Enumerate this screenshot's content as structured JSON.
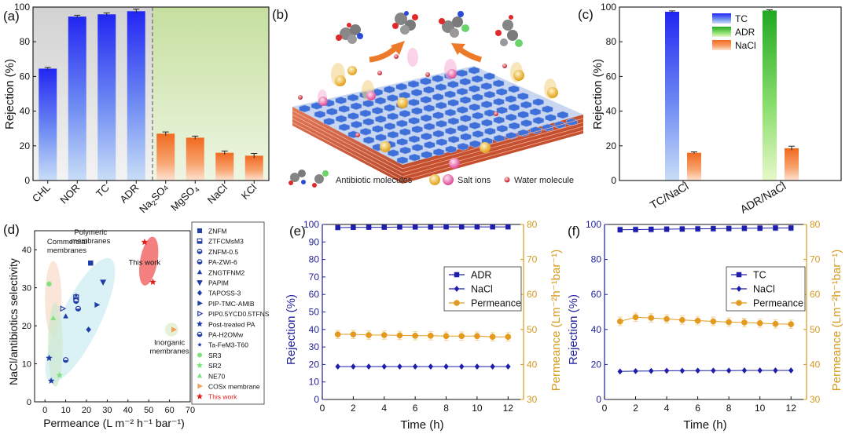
{
  "panels": {
    "a": "(a)",
    "b": "(b)",
    "c": "(c)",
    "d": "(d)",
    "e": "(e)",
    "f": "(f)"
  },
  "schematic": {
    "legend_antibiotic": "Antibiotic molecules",
    "legend_salt": "Salt ions",
    "legend_water": "Water molecule"
  },
  "chart_data": [
    {
      "id": "a",
      "type": "bar",
      "ylabel": "Rejection (%)",
      "ylim": [
        0,
        100
      ],
      "yticks": [
        0,
        20,
        40,
        60,
        80,
        100
      ],
      "categories": [
        "CHL",
        "NOR",
        "TC",
        "ADR",
        "Na2SO4",
        "MgSO4",
        "NaCl",
        "KCl"
      ],
      "category_labels": [
        {
          "main": "CHL",
          "subs": []
        },
        {
          "main": "NOR",
          "subs": []
        },
        {
          "main": "TC",
          "subs": []
        },
        {
          "main": "ADR",
          "subs": []
        },
        {
          "main": "Na",
          "subs": [
            "2",
            "SO",
            "4"
          ]
        },
        {
          "main": "MgSO",
          "subs": [
            "4"
          ]
        },
        {
          "main": "NaCl",
          "subs": []
        },
        {
          "main": "KCl",
          "subs": []
        }
      ],
      "values": [
        64.5,
        94.5,
        95.8,
        97.6,
        27.0,
        24.7,
        16.0,
        14.3
      ],
      "errors": [
        0.7,
        0.8,
        0.8,
        1.2,
        1.0,
        0.9,
        1.0,
        1.3
      ],
      "groups": [
        "antibiotic",
        "antibiotic",
        "antibiotic",
        "antibiotic",
        "salt",
        "salt",
        "salt",
        "salt"
      ],
      "colors": {
        "antibiotic": "#2a38f0",
        "salt": "#f4782e",
        "bg_antibiotic": "#e3e3e3",
        "bg_salt": "#cfe5b4"
      }
    },
    {
      "id": "c",
      "type": "bar",
      "ylabel": "Rejection (%)",
      "ylim": [
        0,
        100
      ],
      "yticks": [
        0,
        20,
        40,
        60,
        80,
        100
      ],
      "categories": [
        "TC/NaCl",
        "ADR/NaCl"
      ],
      "series": [
        {
          "name": "TC",
          "values": [
            97.3,
            null
          ],
          "errors": [
            0.5,
            null
          ],
          "color": "#2a38f0"
        },
        {
          "name": "ADR",
          "values": [
            null,
            98.0
          ],
          "errors": [
            null,
            0.4
          ],
          "color": "#2fb52f"
        },
        {
          "name": "NaCl",
          "values": [
            16.0,
            18.6
          ],
          "errors": [
            0.5,
            1.2
          ],
          "color": "#f4782e"
        }
      ]
    },
    {
      "id": "d",
      "type": "scatter",
      "xlabel": "Permeance (L m⁻² h⁻¹ bar⁻¹)",
      "ylabel": "NaCl/antibiotics selectivity",
      "xlim": [
        -5,
        70
      ],
      "ylim": [
        0,
        45
      ],
      "xticks": [
        0,
        10,
        20,
        30,
        40,
        50,
        60,
        70
      ],
      "yticks": [
        0,
        10,
        20,
        30,
        40
      ],
      "regions": [
        {
          "label": "Commercial\nmembranes",
          "color": "#f9dccb"
        },
        {
          "label": "Polymeric\nmembranes",
          "color": "#cdeef2"
        },
        {
          "label": "This work",
          "color": "#f26a6a"
        },
        {
          "label": "Inorganic\nmembranes",
          "color": "#dcedc9"
        },
        {
          "label": "",
          "color": "#cfe8d0"
        }
      ],
      "series": [
        {
          "name": "ZNFM",
          "marker": "square",
          "color": "#1f3ea8",
          "points": [
            [
              22,
              36.5
            ]
          ]
        },
        {
          "name": "ZTFCMsM3",
          "marker": "hsquare",
          "color": "#1f3ea8",
          "points": [
            [
              15,
              27.5
            ]
          ]
        },
        {
          "name": "ZNFM-0.5",
          "marker": "hcircle",
          "color": "#1f3ea8",
          "points": [
            [
              16,
              24.5
            ]
          ]
        },
        {
          "name": "PA-ZWI-6",
          "marker": "hcircle2",
          "color": "#1f3ea8",
          "points": [
            [
              10,
              11
            ]
          ]
        },
        {
          "name": "ZNGTFNM2",
          "marker": "triangle",
          "color": "#1f3ea8",
          "points": [
            [
              10,
              22.5
            ]
          ]
        },
        {
          "name": "PAPIM",
          "marker": "triangle-down",
          "color": "#1f3ea8",
          "points": [
            [
              28,
              31.5
            ]
          ]
        },
        {
          "name": "TAPOSS-3",
          "marker": "diamond",
          "color": "#1f3ea8",
          "points": [
            [
              21,
              19
            ]
          ]
        },
        {
          "name": "PIP-TMC-AMIB",
          "marker": "triangle-right",
          "color": "#1f3ea8",
          "points": [
            [
              25,
              25.5
            ]
          ]
        },
        {
          "name": "PIP0.5YCD0.5TFNS",
          "marker": "triangle-right-open",
          "color": "#1f3ea8",
          "points": [
            [
              8.5,
              24.5
            ]
          ]
        },
        {
          "name": "Post-treated PA",
          "marker": "star",
          "color": "#1f3ea8",
          "points": [
            [
              2,
              11.5
            ],
            [
              3,
              5.5
            ]
          ]
        },
        {
          "name": "PA-H2OMw",
          "marker": "hcircle",
          "color": "#1f3ea8",
          "points": [
            [
              15,
              26.5
            ]
          ]
        },
        {
          "name": "Ta-FeM3-T60",
          "marker": "star-small",
          "color": "#1f3ea8",
          "points": [
            [
              15,
              28
            ]
          ]
        },
        {
          "name": "SR3",
          "marker": "circle",
          "color": "#7ee37e",
          "points": [
            [
              2,
              31
            ]
          ]
        },
        {
          "name": "SR2",
          "marker": "star",
          "color": "#7ee37e",
          "points": [
            [
              7,
              7
            ]
          ]
        },
        {
          "name": "NE70",
          "marker": "triangle",
          "color": "#7ee37e",
          "points": [
            [
              4,
              22
            ]
          ]
        },
        {
          "name": "COSx membrane",
          "marker": "triangle-right",
          "color": "#f2a05a",
          "points": [
            [
              62,
              19
            ]
          ]
        },
        {
          "name": "This work",
          "marker": "star",
          "color": "#e12020",
          "points": [
            [
              48,
              42
            ],
            [
              52,
              31.5
            ]
          ]
        }
      ]
    },
    {
      "id": "e",
      "type": "line",
      "xlabel": "Time (h)",
      "ylabel": "Rejection (%)",
      "y2label": "Permeance (Lm⁻²h⁻¹bar⁻¹)",
      "xlim": [
        0,
        13
      ],
      "ylim": [
        0,
        100
      ],
      "y2lim": [
        30,
        80
      ],
      "xticks": [
        0,
        2,
        4,
        6,
        8,
        10,
        12
      ],
      "yticks": [
        0,
        10,
        20,
        30,
        40,
        50,
        60,
        70,
        80,
        90,
        100
      ],
      "y2ticks": [
        30,
        40,
        50,
        60,
        70,
        80
      ],
      "x": [
        1,
        2,
        3,
        4,
        5,
        6,
        7,
        8,
        9,
        10,
        11,
        12
      ],
      "series": [
        {
          "name": "ADR",
          "axis": "left",
          "marker": "square",
          "color": "#1e1eaa",
          "values": [
            98.2,
            98.3,
            98.4,
            98.4,
            98.5,
            98.5,
            98.5,
            98.6,
            98.6,
            98.6,
            98.6,
            98.6
          ]
        },
        {
          "name": "NaCl",
          "axis": "left",
          "marker": "diamond",
          "color": "#1e1eaa",
          "values": [
            18.8,
            18.8,
            18.8,
            18.8,
            18.8,
            18.8,
            18.8,
            18.8,
            18.8,
            18.8,
            18.8,
            18.8
          ]
        },
        {
          "name": "Permeance",
          "axis": "right",
          "marker": "circle",
          "color": "#e39a1e",
          "values": [
            48.6,
            48.6,
            48.4,
            48.4,
            48.3,
            48.2,
            48.2,
            48.1,
            48.1,
            48.1,
            47.9,
            47.9
          ],
          "errors": [
            1.2,
            1.2,
            1.2,
            1.2,
            1.2,
            1.2,
            1.2,
            1.2,
            1.2,
            1.2,
            1.2,
            1.2
          ]
        }
      ]
    },
    {
      "id": "f",
      "type": "line",
      "xlabel": "Time (h)",
      "ylabel": "Rejection (%)",
      "y2label": "Permeance (Lm⁻²h⁻¹bar⁻¹)",
      "xlim": [
        0,
        13
      ],
      "ylim": [
        0,
        100
      ],
      "y2lim": [
        30,
        80
      ],
      "xticks": [
        0,
        2,
        4,
        6,
        8,
        10,
        12
      ],
      "yticks": [
        0,
        20,
        40,
        60,
        80,
        100
      ],
      "y2ticks": [
        30,
        40,
        50,
        60,
        70,
        80
      ],
      "x": [
        1,
        2,
        3,
        4,
        5,
        6,
        7,
        8,
        9,
        10,
        11,
        12
      ],
      "series": [
        {
          "name": "TC",
          "axis": "left",
          "marker": "square",
          "color": "#1e1eaa",
          "values": [
            97.0,
            97.1,
            97.2,
            97.3,
            97.4,
            97.5,
            97.6,
            97.7,
            97.8,
            97.9,
            98.0,
            98.0
          ],
          "errors": [
            1.6,
            1.6,
            1.6,
            1.6,
            1.6,
            1.6,
            1.6,
            1.6,
            1.6,
            1.6,
            1.6,
            1.6
          ]
        },
        {
          "name": "NaCl",
          "axis": "left",
          "marker": "diamond",
          "color": "#1e1eaa",
          "values": [
            16.0,
            16.2,
            16.3,
            16.4,
            16.4,
            16.5,
            16.5,
            16.5,
            16.6,
            16.6,
            16.6,
            16.6
          ]
        },
        {
          "name": "Permeance",
          "axis": "right",
          "marker": "circle",
          "color": "#e39a1e",
          "values": [
            52.3,
            53.5,
            53.3,
            53.0,
            52.7,
            52.5,
            52.3,
            52.1,
            52.0,
            51.8,
            51.6,
            51.5
          ],
          "errors": [
            1.2,
            1.2,
            1.2,
            1.2,
            1.2,
            1.2,
            1.2,
            1.2,
            1.2,
            1.2,
            1.2,
            1.2
          ]
        }
      ]
    }
  ]
}
